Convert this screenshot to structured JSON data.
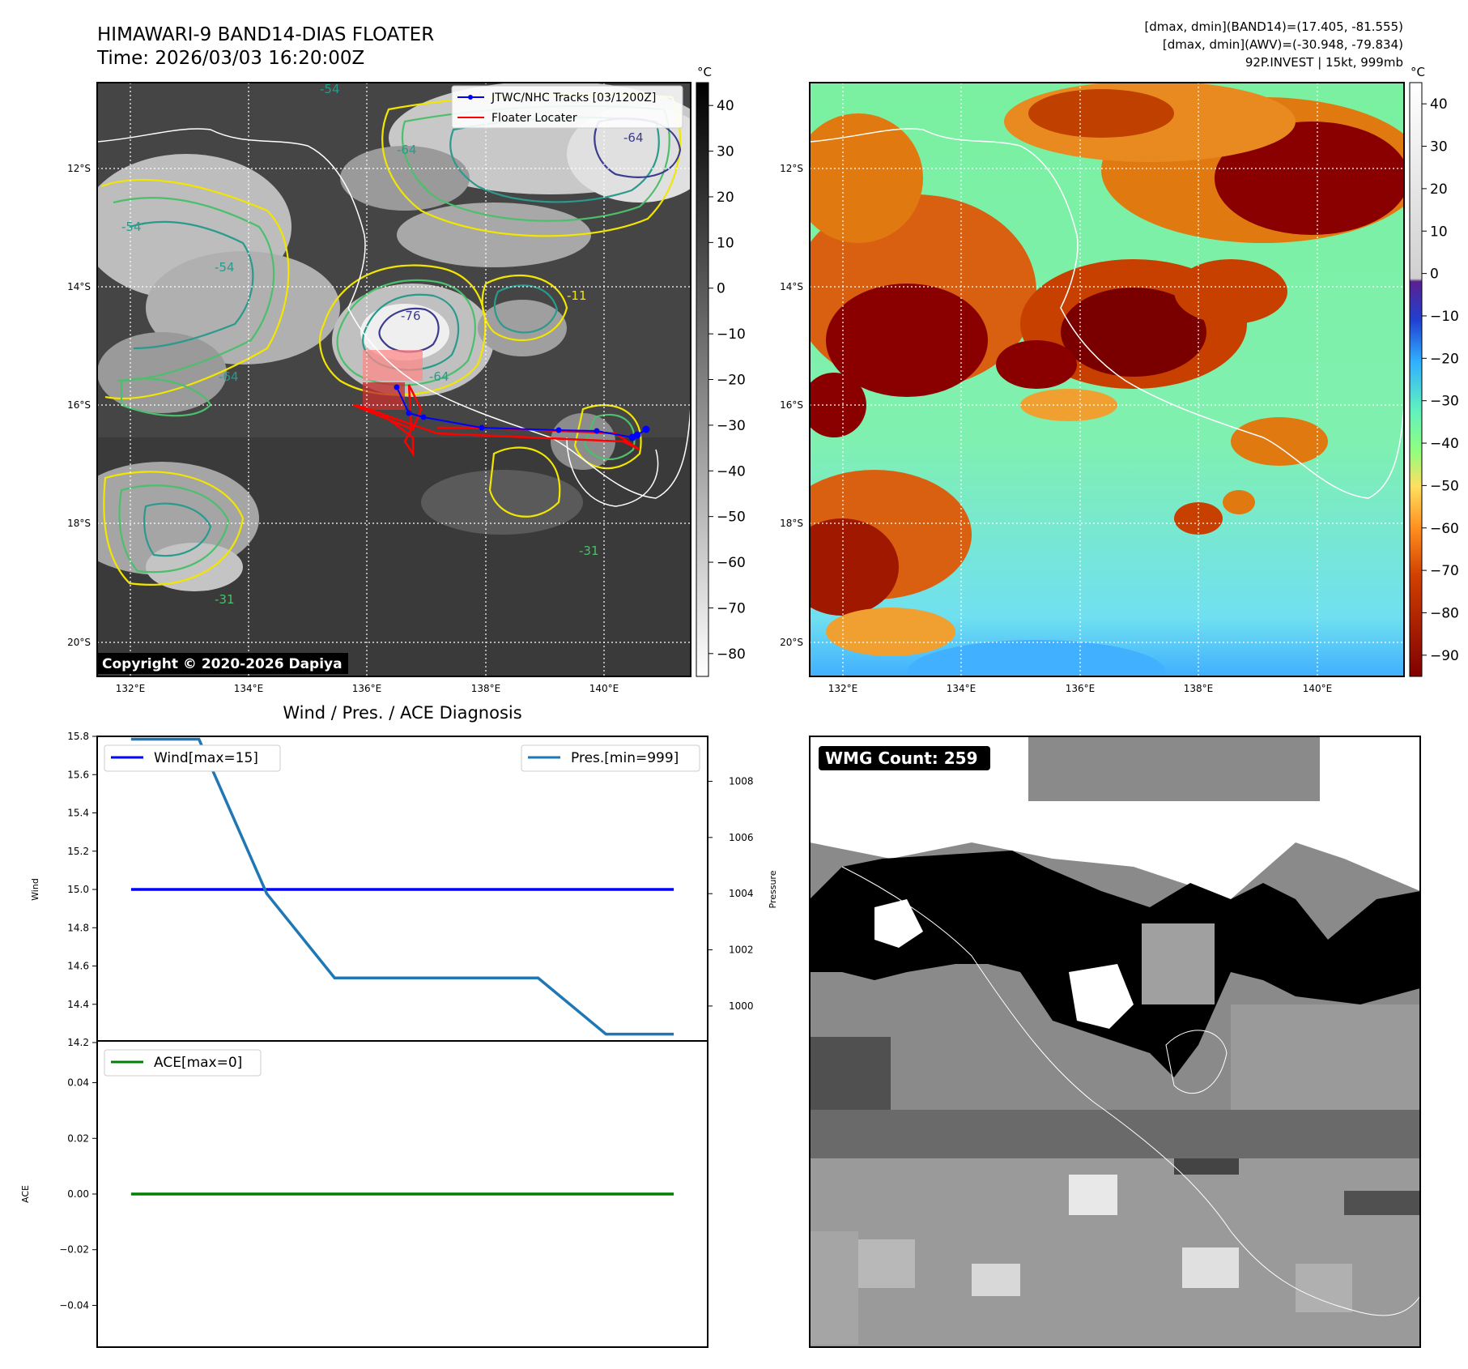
{
  "header": {
    "title_line1": "HIMAWARI-9 BAND14-DIAS FLOATER",
    "title_line2": "Time: 2026/03/03 16:20:00Z",
    "stats_line1": "[dmax, dmin](BAND14)=(17.405, -81.555)",
    "stats_line2": "[dmax, dmin](AWV)=(-30.948, -79.834)",
    "stats_line3": "92P.INVEST | 15kt, 999mb"
  },
  "map": {
    "lat_ticks": [
      "12°S",
      "14°S",
      "16°S",
      "18°S",
      "20°S"
    ],
    "lon_ticks": [
      "132°E",
      "134°E",
      "136°E",
      "138°E",
      "140°E"
    ],
    "copyright": "Copyright © 2020-2026 Dapiya",
    "legend_tracks": "JTWC/NHC Tracks [03/1200Z]",
    "legend_floater": "Floater Locater",
    "track_color": "#0000ff",
    "floater_color": "#ff0000",
    "contour_labels": [
      "-54",
      "-64",
      "-76",
      "-64",
      "-54",
      "-64",
      "-31",
      "-31",
      "-11",
      "-54",
      "-64"
    ]
  },
  "colorbar_ir": {
    "unit": "°C",
    "ticks": [
      "40",
      "30",
      "20",
      "10",
      "0",
      "−10",
      "−20",
      "−30",
      "−40",
      "−50",
      "−60",
      "−70",
      "−80"
    ]
  },
  "colorbar_awv": {
    "unit": "°C",
    "ticks": [
      "40",
      "30",
      "20",
      "10",
      "0",
      "−10",
      "−20",
      "−30",
      "−40",
      "−50",
      "−60",
      "−70",
      "−80",
      "−90"
    ]
  },
  "chart_data": [
    {
      "type": "line",
      "title": "Wind / Pres. / ACE Diagnosis",
      "ylabel": "Wind",
      "y2label": "Pressure",
      "ylim": [
        14.2,
        15.8
      ],
      "y2lim": [
        998.7,
        1009.6
      ],
      "yticks": [
        "15.8",
        "15.6",
        "15.4",
        "15.2",
        "15.0",
        "14.8",
        "14.6",
        "14.4",
        "14.2"
      ],
      "y2ticks": [
        "1008",
        "1006",
        "1004",
        "1002",
        "1000"
      ],
      "series": [
        {
          "name": "Wind[max=15]",
          "color": "#0000ff",
          "x": [
            0,
            1,
            2,
            3,
            4,
            5,
            6,
            7,
            8
          ],
          "values": [
            15,
            15,
            15,
            15,
            15,
            15,
            15,
            15,
            15
          ]
        },
        {
          "name": "Pres.[min=999]",
          "color": "#1f77b4",
          "x": [
            0,
            1,
            2,
            3,
            4,
            5,
            6,
            7,
            8
          ],
          "values": [
            1009.5,
            1009.5,
            1004,
            1001,
            1001,
            1001,
            1001,
            999,
            999
          ]
        }
      ]
    },
    {
      "type": "line",
      "ylabel": "ACE",
      "ylim": [
        -0.055,
        0.055
      ],
      "yticks": [
        "0.04",
        "0.02",
        "0.00",
        "−0.02",
        "−0.04"
      ],
      "series": [
        {
          "name": "ACE[max=0]",
          "color": "#008000",
          "x": [
            0,
            1,
            2,
            3,
            4,
            5,
            6,
            7,
            8
          ],
          "values": [
            0,
            0,
            0,
            0,
            0,
            0,
            0,
            0,
            0
          ]
        }
      ]
    }
  ],
  "wmg": {
    "label": "WMG Count: 259"
  }
}
